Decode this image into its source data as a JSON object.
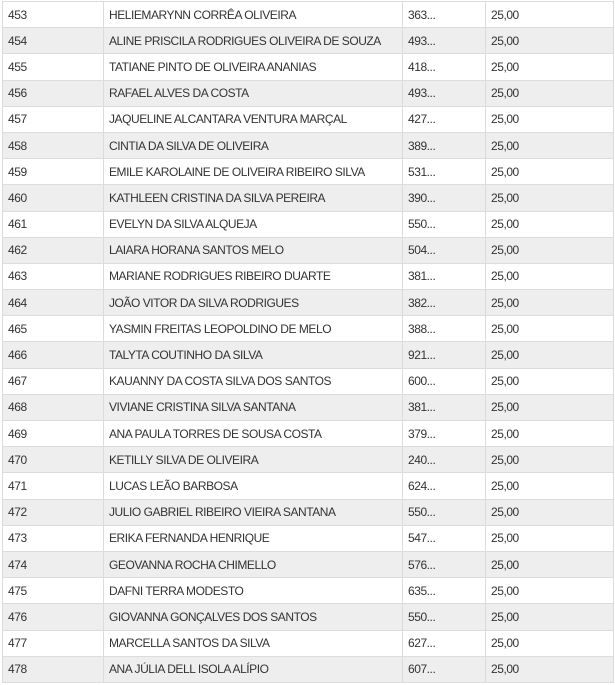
{
  "rows": [
    {
      "id": "453",
      "name": "HELIEMARYNN CORRÊA OLIVEIRA",
      "code": "363...",
      "score": "25,00"
    },
    {
      "id": "454",
      "name": "ALINE PRISCILA RODRIGUES OLIVEIRA DE SOUZA",
      "code": "493...",
      "score": "25,00"
    },
    {
      "id": "455",
      "name": "TATIANE PINTO DE OLIVEIRA ANANIAS",
      "code": "418...",
      "score": "25,00"
    },
    {
      "id": "456",
      "name": "RAFAEL ALVES DA COSTA",
      "code": "493...",
      "score": "25,00"
    },
    {
      "id": "457",
      "name": "JAQUELINE ALCANTARA VENTURA MARÇAL",
      "code": "427...",
      "score": "25,00"
    },
    {
      "id": "458",
      "name": "CINTIA DA SILVA DE OLIVEIRA",
      "code": "389...",
      "score": "25,00"
    },
    {
      "id": "459",
      "name": "EMILE KAROLAINE DE OLIVEIRA RIBEIRO SILVA",
      "code": "531...",
      "score": "25,00"
    },
    {
      "id": "460",
      "name": "KATHLEEN CRISTINA DA SILVA PEREIRA",
      "code": "390...",
      "score": "25,00"
    },
    {
      "id": "461",
      "name": "EVELYN DA SILVA ALQUEJA",
      "code": "550...",
      "score": "25,00"
    },
    {
      "id": "462",
      "name": "LAIARA HORANA SANTOS MELO",
      "code": "504...",
      "score": "25,00"
    },
    {
      "id": "463",
      "name": "MARIANE RODRIGUES RIBEIRO DUARTE",
      "code": "381...",
      "score": "25,00"
    },
    {
      "id": "464",
      "name": "JOÃO VITOR DA SILVA RODRIGUES",
      "code": "382...",
      "score": "25,00"
    },
    {
      "id": "465",
      "name": "YASMIN FREITAS LEOPOLDINO DE MELO",
      "code": "388...",
      "score": "25,00"
    },
    {
      "id": "466",
      "name": "TALYTA COUTINHO DA SILVA",
      "code": "921...",
      "score": "25,00"
    },
    {
      "id": "467",
      "name": "KAUANNY DA COSTA SILVA DOS SANTOS",
      "code": "600...",
      "score": "25,00"
    },
    {
      "id": "468",
      "name": "VIVIANE CRISTINA SILVA SANTANA",
      "code": "381...",
      "score": "25,00"
    },
    {
      "id": "469",
      "name": "ANA PAULA TORRES DE SOUSA COSTA",
      "code": "379...",
      "score": "25,00"
    },
    {
      "id": "470",
      "name": "KETILLY SILVA DE OLIVEIRA",
      "code": "240...",
      "score": "25,00"
    },
    {
      "id": "471",
      "name": "LUCAS LEÃO BARBOSA",
      "code": "624...",
      "score": "25,00"
    },
    {
      "id": "472",
      "name": "JULIO GABRIEL RIBEIRO VIEIRA SANTANA",
      "code": "550...",
      "score": "25,00"
    },
    {
      "id": "473",
      "name": "ERIKA FERNANDA HENRIQUE",
      "code": "547...",
      "score": "25,00"
    },
    {
      "id": "474",
      "name": "GEOVANNA ROCHA CHIMELLO",
      "code": "576...",
      "score": "25,00"
    },
    {
      "id": "475",
      "name": "DAFNI TERRA MODESTO",
      "code": "635...",
      "score": "25,00"
    },
    {
      "id": "476",
      "name": "GIOVANNA GONÇALVES DOS SANTOS",
      "code": "550...",
      "score": "25,00"
    },
    {
      "id": "477",
      "name": "MARCELLA SANTOS DA SILVA",
      "code": "627...",
      "score": "25,00"
    },
    {
      "id": "478",
      "name": "ANA JÚLIA DELL ISOLA ALÍPIO",
      "code": "607...",
      "score": "25,00"
    }
  ]
}
